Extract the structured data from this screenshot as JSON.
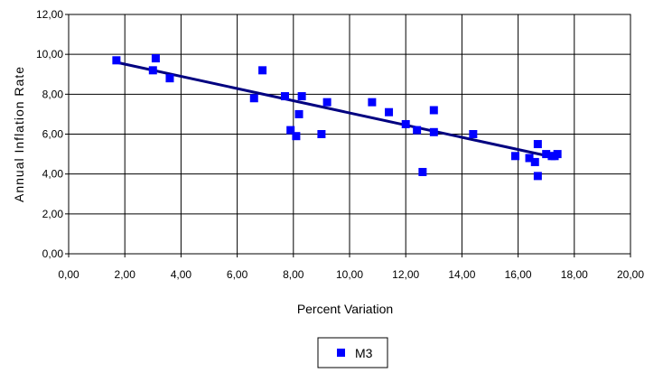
{
  "chart_data": {
    "type": "scatter",
    "title": "",
    "xlabel": "Percent Variation",
    "ylabel": "Annual Inflation Rate",
    "xlim": [
      0,
      20
    ],
    "ylim": [
      0,
      12
    ],
    "x_ticks": [
      "0,00",
      "2,00",
      "4,00",
      "6,00",
      "8,00",
      "10,00",
      "12,00",
      "14,00",
      "16,00",
      "18,00",
      "20,00"
    ],
    "y_ticks": [
      "0,00",
      "2,00",
      "4,00",
      "6,00",
      "8,00",
      "10,00",
      "12,00"
    ],
    "grid": true,
    "legend_position": "bottom",
    "colors": {
      "marker": "#0000ff",
      "trendline": "#000080",
      "grid": "#000000"
    },
    "series": [
      {
        "name": "M3",
        "points": [
          [
            1.7,
            9.7
          ],
          [
            3.0,
            9.2
          ],
          [
            3.1,
            9.8
          ],
          [
            3.6,
            8.8
          ],
          [
            6.6,
            7.8
          ],
          [
            6.9,
            9.2
          ],
          [
            7.7,
            7.9
          ],
          [
            7.9,
            6.2
          ],
          [
            8.1,
            5.9
          ],
          [
            8.2,
            7.0
          ],
          [
            8.3,
            7.9
          ],
          [
            9.0,
            6.0
          ],
          [
            9.2,
            7.6
          ],
          [
            10.8,
            7.6
          ],
          [
            11.4,
            7.1
          ],
          [
            12.0,
            6.5
          ],
          [
            12.4,
            6.2
          ],
          [
            12.6,
            4.1
          ],
          [
            13.0,
            7.2
          ],
          [
            13.0,
            6.1
          ],
          [
            14.4,
            6.0
          ],
          [
            15.9,
            4.9
          ],
          [
            16.4,
            4.8
          ],
          [
            16.6,
            4.6
          ],
          [
            16.7,
            5.5
          ],
          [
            16.7,
            3.9
          ],
          [
            17.0,
            5.0
          ],
          [
            17.2,
            4.9
          ],
          [
            17.3,
            4.9
          ],
          [
            17.4,
            5.0
          ]
        ]
      }
    ],
    "trendline": {
      "x": [
        1.7,
        17.4
      ],
      "y": [
        9.6,
        4.8
      ]
    }
  }
}
